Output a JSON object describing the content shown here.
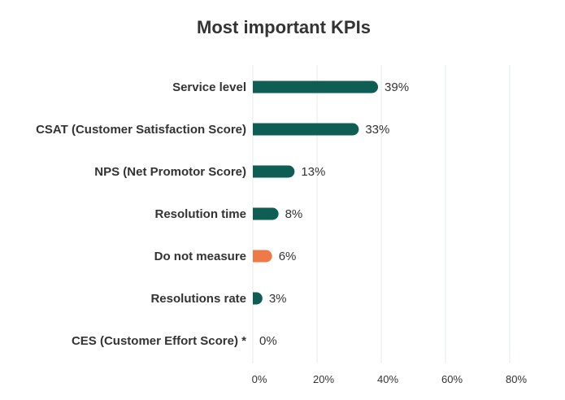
{
  "chart_data": {
    "type": "bar",
    "orientation": "horizontal",
    "title": "Most important KPIs",
    "categories": [
      "Service level",
      "CSAT (Customer Satisfaction Score)",
      "NPS (Net Promotor Score)",
      "Resolution time",
      "Do not measure",
      "Resolutions rate",
      "CES (Customer Effort Score) *"
    ],
    "values": [
      39,
      33,
      13,
      8,
      6,
      3,
      0
    ],
    "value_labels": [
      "39%",
      "33%",
      "13%",
      "8%",
      "6%",
      "3%",
      "0%"
    ],
    "colors": [
      "#0e5e53",
      "#0e5e53",
      "#0e5e53",
      "#0e5e53",
      "#ee7b47",
      "#0e5e53",
      "#0e5e53"
    ],
    "xlim": [
      0,
      80
    ],
    "xticks": [
      0,
      20,
      40,
      60,
      80
    ],
    "xtick_labels": [
      "0%",
      "20%",
      "40%",
      "60%",
      "80%"
    ],
    "grid": true,
    "legend": "none"
  }
}
